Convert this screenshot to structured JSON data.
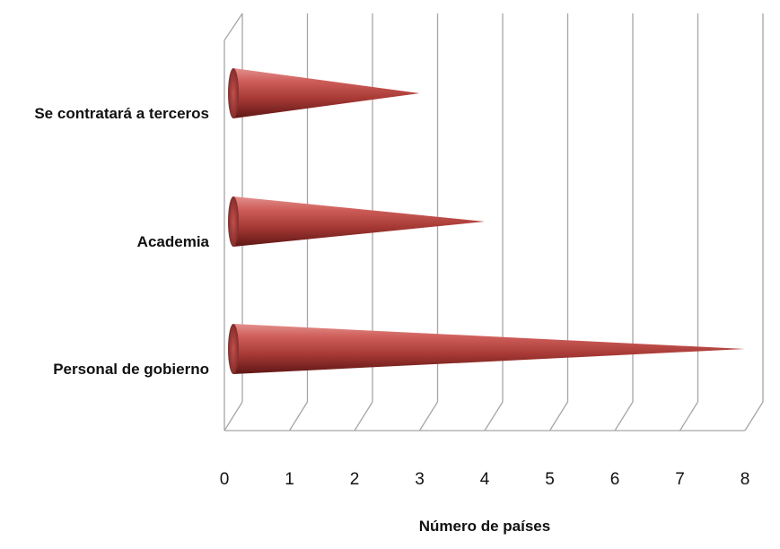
{
  "chart_data": {
    "type": "bar",
    "orientation": "horizontal",
    "bar_shape": "cone",
    "categories": [
      "Se contratará a terceros",
      "Academia",
      "Personal de gobierno"
    ],
    "values": [
      3,
      4,
      8
    ],
    "xlabel": "Número de países",
    "ylabel": "",
    "xlim": [
      0,
      8
    ],
    "xticks": [
      "0",
      "1",
      "2",
      "3",
      "4",
      "5",
      "6",
      "7",
      "8"
    ],
    "grid": true,
    "legend": "none",
    "colors": {
      "bar": "#c0504d",
      "bar_dark": "#6e1f1d",
      "grid": "#a6a6a6"
    }
  }
}
